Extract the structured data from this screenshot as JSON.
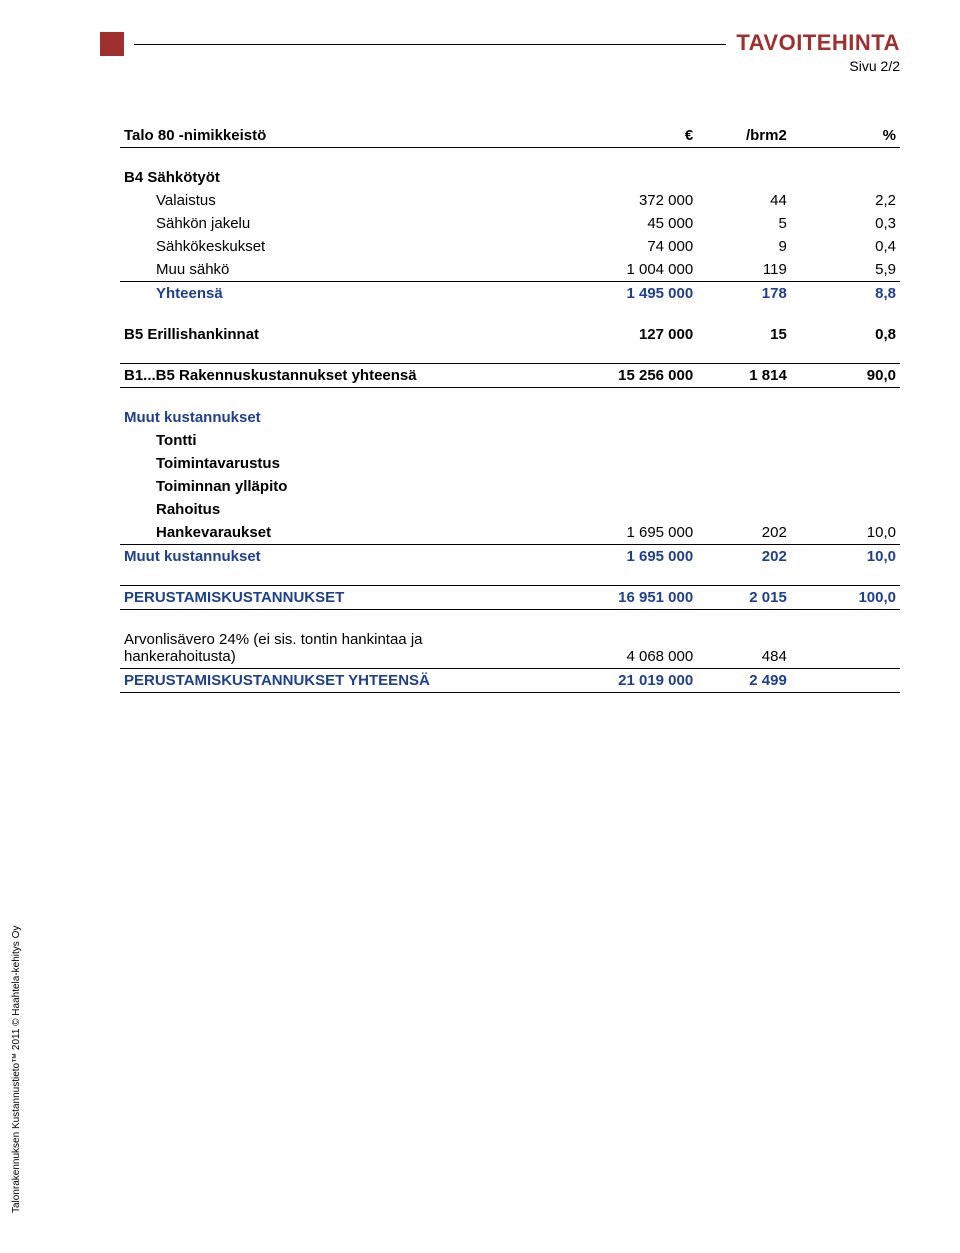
{
  "header": {
    "title": "TAVOITEHINTA",
    "subtitle": "Sivu 2/2",
    "title_color": "#a03030",
    "square_color": "#a03030"
  },
  "columns": {
    "name": "Talo 80 -nimikkeistö",
    "eur": "€",
    "brm": "/brm2",
    "pct": "%"
  },
  "b4": {
    "heading": "B4  Sähkötyöt",
    "rows": [
      {
        "label": "Valaistus",
        "eur": "372 000",
        "brm": "44",
        "pct": "2,2"
      },
      {
        "label": "Sähkön jakelu",
        "eur": "45 000",
        "brm": "5",
        "pct": "0,3"
      },
      {
        "label": "Sähkökeskukset",
        "eur": "74 000",
        "brm": "9",
        "pct": "0,4"
      },
      {
        "label": "Muu sähkö",
        "eur": "1 004 000",
        "brm": "119",
        "pct": "5,9"
      }
    ],
    "total": {
      "label": "Yhteensä",
      "eur": "1 495 000",
      "brm": "178",
      "pct": "8,8"
    }
  },
  "b5": {
    "label": "B5  Erillishankinnat",
    "eur": "127 000",
    "brm": "15",
    "pct": "0,8"
  },
  "b1b5": {
    "label": "B1...B5  Rakennuskustannukset yhteensä",
    "eur": "15 256 000",
    "brm": "1 814",
    "pct": "90,0"
  },
  "muut": {
    "heading": "Muut kustannukset",
    "items": [
      {
        "label": "Tontti"
      },
      {
        "label": "Toimintavarustus"
      },
      {
        "label": "Toiminnan ylläpito"
      },
      {
        "label": "Rahoitus"
      }
    ],
    "hanke": {
      "label": "Hankevaraukset",
      "eur": "1 695 000",
      "brm": "202",
      "pct": "10,0"
    },
    "total": {
      "label": "Muut kustannukset",
      "eur": "1 695 000",
      "brm": "202",
      "pct": "10,0"
    }
  },
  "perustamis": {
    "label": "PERUSTAMISKUSTANNUKSET",
    "eur": "16 951 000",
    "brm": "2 015",
    "pct": "100,0"
  },
  "alv": {
    "label": "Arvonlisävero 24% (ei sis. tontin hankintaa ja hankerahoitusta)",
    "eur": "4 068 000",
    "brm": "484"
  },
  "perustamis_yht": {
    "label": "PERUSTAMISKUSTANNUKSET YHTEENSÄ",
    "eur": "21 019 000",
    "brm": "2 499"
  },
  "footer": "Talonrakennuksen Kustannustieto™ 2011 © Haahtela-kehitys Oy",
  "colors": {
    "blue": "#1f3f8f",
    "text": "#000000",
    "bg": "#ffffff"
  }
}
